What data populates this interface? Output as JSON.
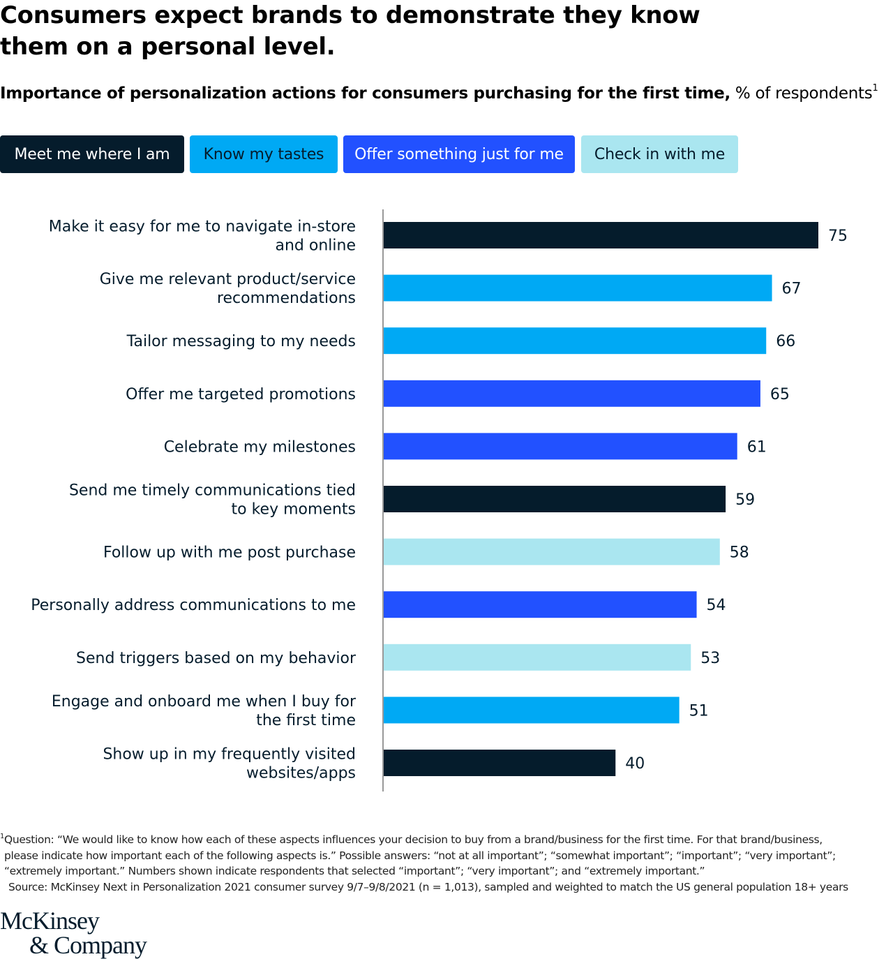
{
  "header": {
    "title": "Consumers expect brands to demonstrate they know them on a personal level.",
    "subtitle_bold": "Importance of personalization actions for consumers purchasing for the first time,",
    "subtitle_regular": " % of respondents",
    "subtitle_sup": "1"
  },
  "legend": {
    "items": [
      {
        "label": "Meet me where I am",
        "color": "#051c2c",
        "text_color": "#ffffff"
      },
      {
        "label": "Know my tastes",
        "color": "#00a9f4",
        "text_color": "#051c2c"
      },
      {
        "label": "Offer something just for me",
        "color": "#2251ff",
        "text_color": "#ffffff"
      },
      {
        "label": "Check in with me",
        "color": "#aae6f0",
        "text_color": "#051c2c"
      }
    ]
  },
  "chart_data": {
    "type": "bar",
    "orientation": "horizontal",
    "xlim": [
      0,
      100
    ],
    "grid": false,
    "legend_placement": "top-left",
    "categories": [
      [
        "Make it easy for me to navigate in-store",
        "and online"
      ],
      [
        "Give me relevant product/service",
        "recommendations"
      ],
      [
        "Tailor messaging to my needs"
      ],
      [
        "Offer me targeted promotions"
      ],
      [
        "Celebrate my milestones"
      ],
      [
        "Send me timely communications tied",
        "to key moments"
      ],
      [
        "Follow up with me post purchase"
      ],
      [
        "Personally address communications to me"
      ],
      [
        "Send triggers based on my behavior"
      ],
      [
        "Engage and onboard me when I buy for",
        "the first time"
      ],
      [
        "Show up in my frequently visited",
        "websites/apps"
      ]
    ],
    "values": [
      75,
      67,
      66,
      65,
      61,
      59,
      58,
      54,
      53,
      51,
      40
    ],
    "groups": [
      "Meet me where I am",
      "Know my tastes",
      "Know my tastes",
      "Offer something just for me",
      "Offer something just for me",
      "Meet me where I am",
      "Check in with me",
      "Offer something just for me",
      "Check in with me",
      "Know my tastes",
      "Meet me where I am"
    ]
  },
  "footnote": {
    "sup": "1",
    "lines": [
      "Question: “We would like to know how each of these aspects influences your decision to buy from a brand/business for the first time. For that brand/business,",
      "please indicate how important each of the following aspects is.” Possible answers: “not at all important”; “somewhat important”; “important”; “very important”;",
      "“extremely important.” Numbers shown indicate respondents that selected “important”; “very important”; and “extremely important.”"
    ],
    "source": "Source: McKinsey Next in Personalization 2021 consumer survey 9/7–9/8/2021 (n = 1,013), sampled and weighted to match the US general population 18+ years"
  },
  "logo": {
    "line1": "McKinsey",
    "line2": "& Company"
  }
}
